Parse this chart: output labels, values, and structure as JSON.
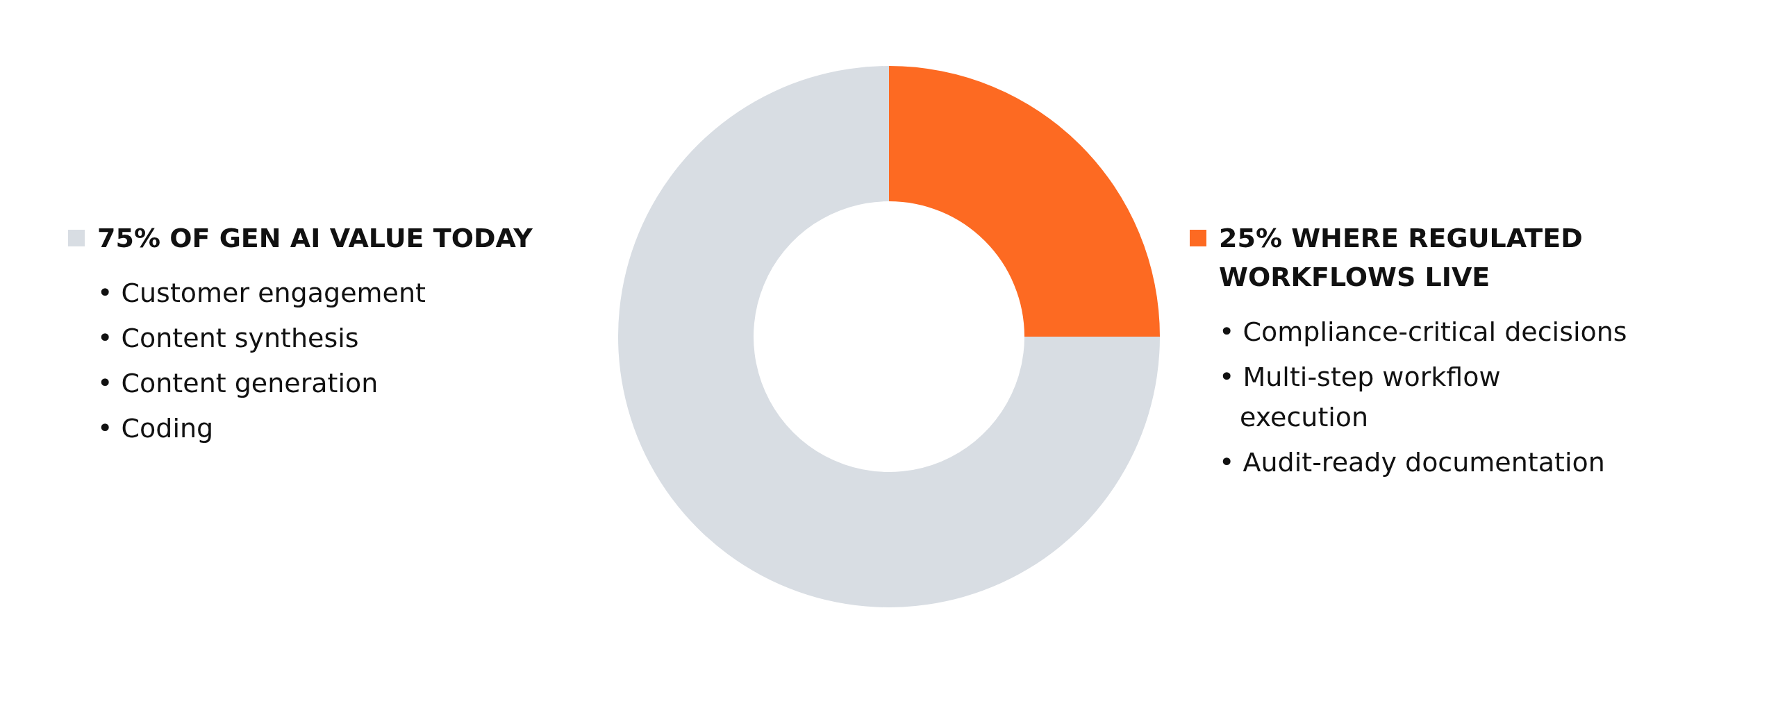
{
  "chart_data": {
    "type": "donut",
    "categories": [
      "75% OF GEN AI VALUE TODAY",
      "25% WHERE REGULATED WORKFLOWS LIVE"
    ],
    "values": [
      75,
      25
    ],
    "colors": [
      "#d8dde3",
      "#fd6a22"
    ],
    "legend": "left",
    "annotations": [
      {
        "text": "• Customer engagement",
        "x": "75% OF GEN AI VALUE TODAY"
      },
      {
        "text": "• Content synthesis",
        "x": "75% OF GEN AI VALUE TODAY"
      },
      {
        "text": "• Content generation",
        "x": "75% OF GEN AI VALUE TODAY"
      },
      {
        "text": "• Coding",
        "x": "75% OF GEN AI VALUE TODAY"
      },
      {
        "text": "• Compliance-critical decisions",
        "x": "25% WHERE REGULATED WORKFLOWS LIVE"
      },
      {
        "text": "• Multi-step workflow execution",
        "x": "25% WHERE REGULATED WORKFLOWS LIVE"
      },
      {
        "text": "• Audit-ready documentation",
        "x": "25% WHERE REGULATED WORKFLOWS LIVE"
      }
    ]
  }
}
